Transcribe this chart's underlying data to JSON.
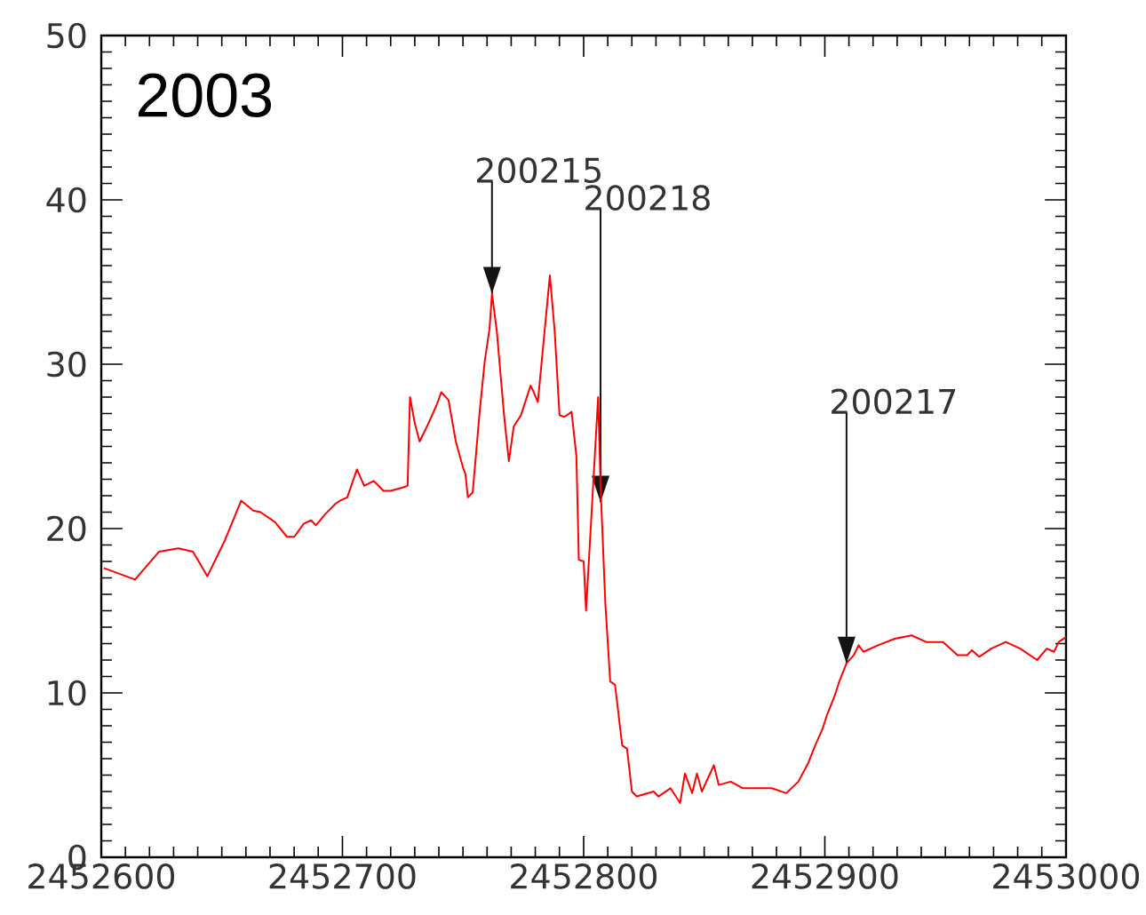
{
  "chart_data": {
    "type": "line",
    "title": "2003",
    "color": "#ff0000",
    "marker": "none",
    "line_style": "solid",
    "xlim": [
      2452600,
      2453000
    ],
    "ylim": [
      0,
      50
    ],
    "xticks": [
      2452600,
      2452700,
      2452800,
      2452900,
      2453000
    ],
    "yticks": [
      0,
      10,
      20,
      30,
      40,
      50
    ],
    "x": [
      2452601,
      2452614,
      2452624,
      2452632,
      2452638,
      2452644,
      2452651,
      2452658,
      2452663,
      2452666,
      2452672,
      2452677,
      2452680,
      2452684,
      2452687,
      2452689,
      2452693,
      2452697,
      2452699,
      2452702,
      2452706,
      2452709,
      2452713,
      2452717,
      2452720,
      2452725,
      2452727,
      2452728,
      2452730,
      2452732,
      2452735,
      2452739,
      2452741,
      2452744,
      2452747,
      2452750,
      2452751,
      2452752,
      2452754,
      2452757,
      2452759,
      2452761,
      2452762,
      2452764,
      2452767,
      2452769,
      2452771,
      2452774,
      2452778,
      2452779,
      2452781,
      2452786,
      2452788,
      2452790,
      2452792,
      2452795,
      2452797,
      2452798,
      2452800,
      2452801,
      2452806,
      2452807,
      2452809,
      2452811,
      2452813,
      2452816,
      2452818,
      2452820,
      2452822,
      2452829,
      2452831,
      2452836,
      2452840,
      2452842,
      2452845,
      2452847,
      2452849,
      2452854,
      2452856,
      2452861,
      2452866,
      2452873,
      2452878,
      2452884,
      2452889,
      2452893,
      2452896,
      2452899,
      2452901,
      2452904,
      2452906,
      2452909,
      2452912,
      2452914,
      2452916,
      2452922,
      2452929,
      2452936,
      2452942,
      2452949,
      2452955,
      2452959,
      2452961,
      2452964,
      2452969,
      2452975,
      2452981,
      2452988,
      2452992,
      2452995,
      2452997,
      2453000
    ],
    "values": [
      17.6,
      16.9,
      18.6,
      18.8,
      18.6,
      17.1,
      19.2,
      21.7,
      21.1,
      21.0,
      20.4,
      19.5,
      19.5,
      20.3,
      20.5,
      20.2,
      20.9,
      21.5,
      21.7,
      21.9,
      23.6,
      22.6,
      22.9,
      22.3,
      22.3,
      22.5,
      22.6,
      28.0,
      26.4,
      25.3,
      26.2,
      27.5,
      28.3,
      27.8,
      25.3,
      23.7,
      23.3,
      21.9,
      22.2,
      27.3,
      30.2,
      32.2,
      34.3,
      32.0,
      26.9,
      24.1,
      26.2,
      26.9,
      28.7,
      28.4,
      27.7,
      35.4,
      32.0,
      26.9,
      26.8,
      27.1,
      24.4,
      18.1,
      18.0,
      15.0,
      28.0,
      22.6,
      15.4,
      10.7,
      10.5,
      6.8,
      6.6,
      4.0,
      3.7,
      4.0,
      3.7,
      4.2,
      3.3,
      5.1,
      3.9,
      5.1,
      4.0,
      5.6,
      4.4,
      4.6,
      4.2,
      4.2,
      4.2,
      3.9,
      4.6,
      5.7,
      6.8,
      7.8,
      8.7,
      9.8,
      10.7,
      11.8,
      12.3,
      12.9,
      12.5,
      12.9,
      13.3,
      13.5,
      13.1,
      13.1,
      12.3,
      12.3,
      12.6,
      12.2,
      12.7,
      13.1,
      12.7,
      12.0,
      12.7,
      12.5,
      13.1,
      13.4
    ],
    "annotations": [
      {
        "text": "200215",
        "x": 2452762,
        "y": 34.3
      },
      {
        "text": "200218",
        "x": 2452807,
        "y": 21.6
      },
      {
        "text": "200217",
        "x": 2452909,
        "y": 11.8
      }
    ]
  }
}
